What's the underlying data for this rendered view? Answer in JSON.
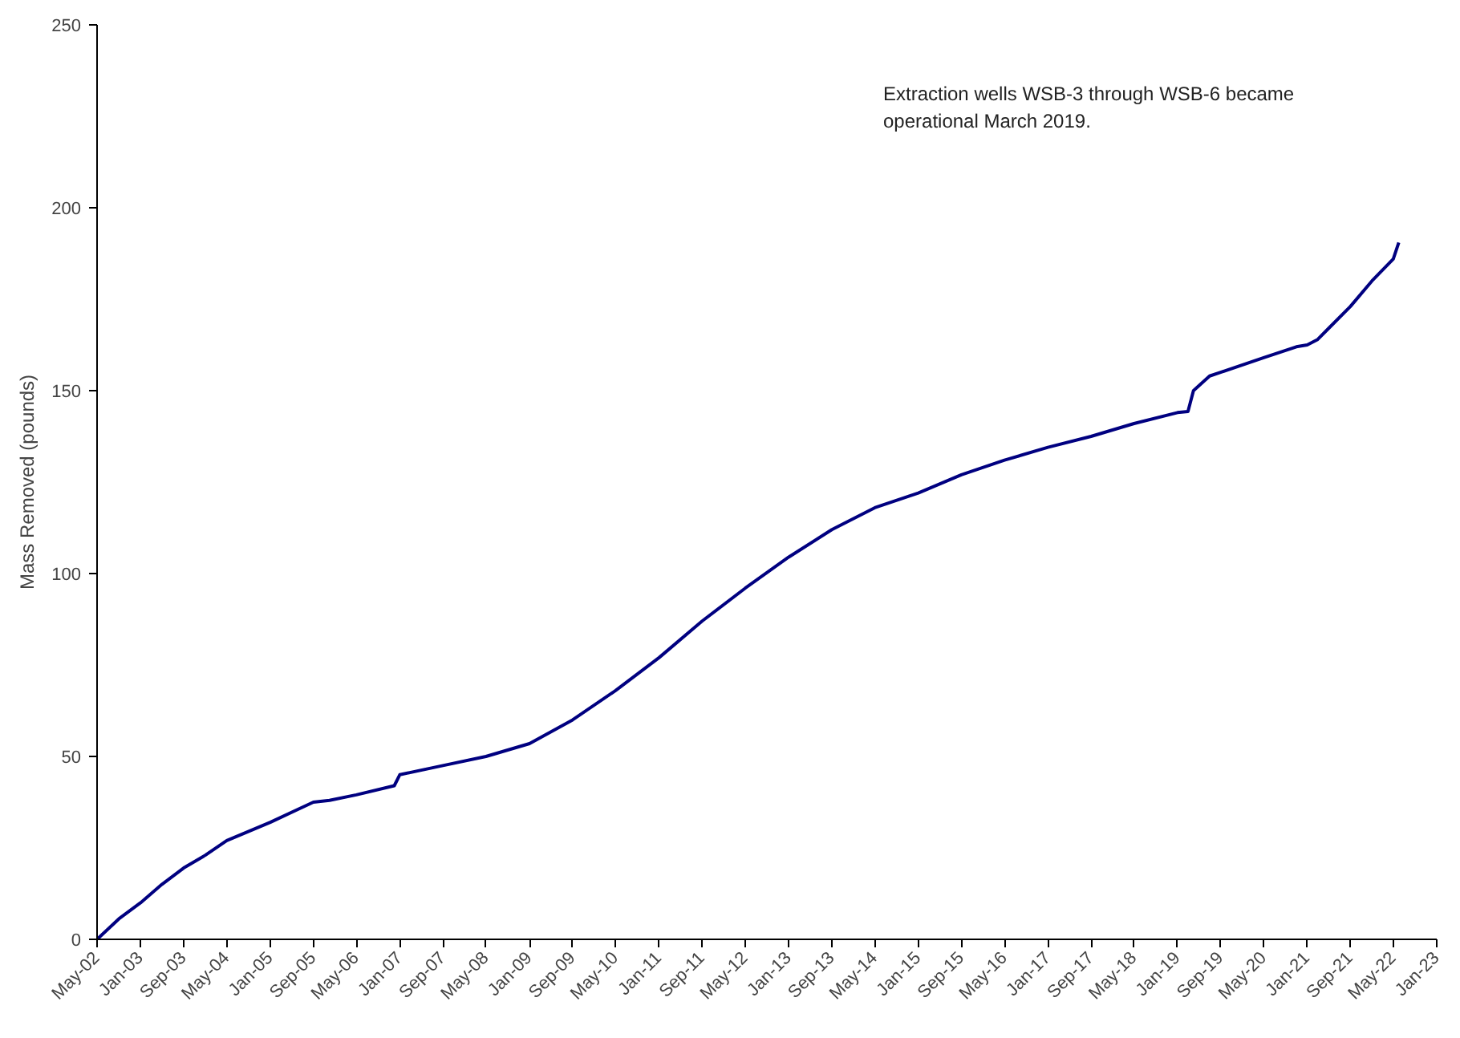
{
  "chart_data": {
    "type": "line",
    "ylabel": "Mass Removed (pounds)",
    "annotations": [
      "Extraction wells WSB-3 through WSB-6 became operational March 2019."
    ],
    "x": [
      "2002-05",
      "2002-09",
      "2003-01",
      "2003-05",
      "2003-09",
      "2004-01",
      "2004-05",
      "2005-01",
      "2005-09",
      "2005-12",
      "2006-05",
      "2006-12",
      "2007-01",
      "2007-09",
      "2008-05",
      "2009-01",
      "2009-09",
      "2010-05",
      "2011-01",
      "2011-09",
      "2012-05",
      "2013-01",
      "2013-09",
      "2014-05",
      "2015-01",
      "2015-09",
      "2016-05",
      "2017-01",
      "2017-09",
      "2018-05",
      "2019-01",
      "2019-03",
      "2019-04",
      "2019-07",
      "2019-09",
      "2020-05",
      "2020-11",
      "2021-01",
      "2021-03",
      "2021-05",
      "2021-09",
      "2022-01",
      "2022-05",
      "2022-06"
    ],
    "series": [
      {
        "color": "#000080",
        "values": [
          0,
          5.6,
          10,
          15,
          19.5,
          23,
          27,
          32,
          37.5,
          38,
          39.5,
          42,
          45,
          47.5,
          50,
          53.5,
          60,
          68,
          77,
          87,
          96,
          104.5,
          112,
          118,
          122,
          127,
          131,
          134.5,
          137.5,
          141,
          144,
          144.3,
          150,
          154,
          155,
          159,
          162,
          162.5,
          164,
          167,
          173,
          180,
          186,
          190.5
        ]
      }
    ],
    "xlim": [
      "2002-05",
      "2023-01"
    ],
    "xticks": [
      {
        "value": "2002-05",
        "label": "May-02"
      },
      {
        "value": "2003-01",
        "label": "Jan-03"
      },
      {
        "value": "2003-09",
        "label": "Sep-03"
      },
      {
        "value": "2004-05",
        "label": "May-04"
      },
      {
        "value": "2005-01",
        "label": "Jan-05"
      },
      {
        "value": "2005-09",
        "label": "Sep-05"
      },
      {
        "value": "2006-05",
        "label": "May-06"
      },
      {
        "value": "2007-01",
        "label": "Jan-07"
      },
      {
        "value": "2007-09",
        "label": "Sep-07"
      },
      {
        "value": "2008-05",
        "label": "May-08"
      },
      {
        "value": "2009-01",
        "label": "Jan-09"
      },
      {
        "value": "2009-09",
        "label": "Sep-09"
      },
      {
        "value": "2010-05",
        "label": "May-10"
      },
      {
        "value": "2011-01",
        "label": "Jan-11"
      },
      {
        "value": "2011-09",
        "label": "Sep-11"
      },
      {
        "value": "2012-05",
        "label": "May-12"
      },
      {
        "value": "2013-01",
        "label": "Jan-13"
      },
      {
        "value": "2013-09",
        "label": "Sep-13"
      },
      {
        "value": "2014-05",
        "label": "May-14"
      },
      {
        "value": "2015-01",
        "label": "Jan-15"
      },
      {
        "value": "2015-09",
        "label": "Sep-15"
      },
      {
        "value": "2016-05",
        "label": "May-16"
      },
      {
        "value": "2017-01",
        "label": "Jan-17"
      },
      {
        "value": "2017-09",
        "label": "Sep-17"
      },
      {
        "value": "2018-05",
        "label": "May-18"
      },
      {
        "value": "2019-01",
        "label": "Jan-19"
      },
      {
        "value": "2019-09",
        "label": "Sep-19"
      },
      {
        "value": "2020-05",
        "label": "May-20"
      },
      {
        "value": "2021-01",
        "label": "Jan-21"
      },
      {
        "value": "2021-09",
        "label": "Sep-21"
      },
      {
        "value": "2022-05",
        "label": "May-22"
      },
      {
        "value": "2023-01",
        "label": "Jan-23"
      }
    ],
    "ylim": [
      0,
      250
    ],
    "yticks": [
      0,
      50,
      100,
      150,
      200,
      250
    ],
    "grid": false,
    "marker": "none",
    "line_style": "solid"
  }
}
